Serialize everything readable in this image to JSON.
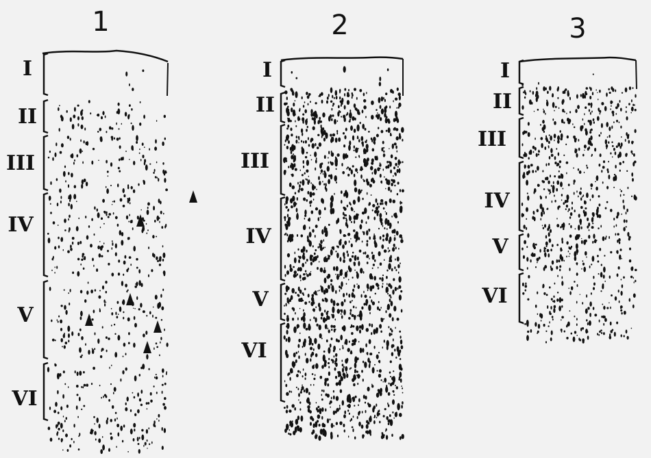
{
  "figure": {
    "panels": [
      {
        "number": "1",
        "layers": [
          {
            "label": "I"
          },
          {
            "label": "II"
          },
          {
            "label": "III"
          },
          {
            "label": "IV"
          },
          {
            "label": "V"
          },
          {
            "label": "VI"
          }
        ]
      },
      {
        "number": "2",
        "layers": [
          {
            "label": "I"
          },
          {
            "label": "II"
          },
          {
            "label": "III"
          },
          {
            "label": "IV"
          },
          {
            "label": "V"
          },
          {
            "label": "VI"
          }
        ]
      },
      {
        "number": "3",
        "layers": [
          {
            "label": "I"
          },
          {
            "label": "II"
          },
          {
            "label": "III"
          },
          {
            "label": "IV"
          },
          {
            "label": "V"
          },
          {
            "label": "VI"
          }
        ]
      }
    ],
    "colors": {
      "ink": "#111111",
      "background": "#f2f2f2"
    }
  }
}
